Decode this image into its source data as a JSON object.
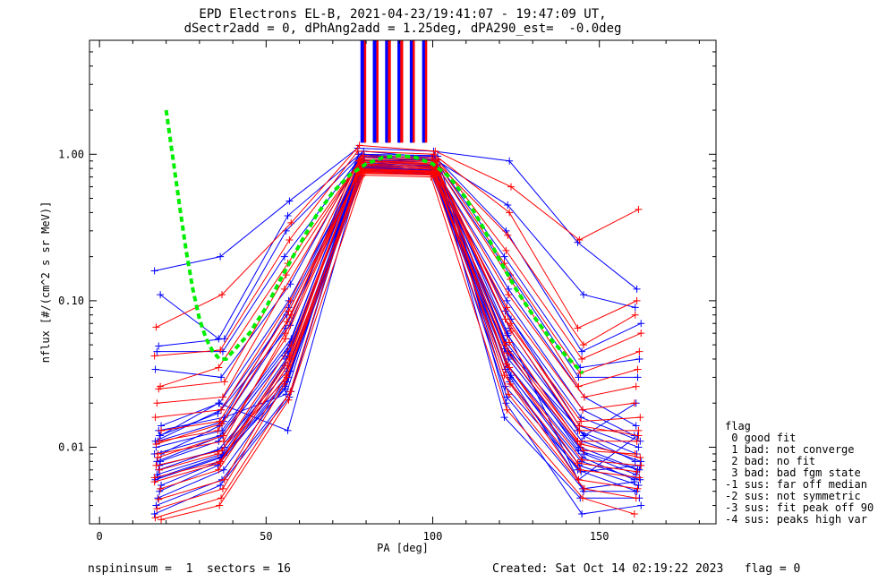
{
  "title_line1": "EPD Electrons EL-B, 2021-04-23/19:41:07 - 19:47:09 UT,",
  "title_line2": "dSectr2add = 0, dPhAng2add = 1.25deg, dPA290_est=  -0.0deg",
  "footer": {
    "left": "nspininsum =  1  sectors = 16",
    "right": "Created: Sat Oct 14 02:19:22 2023   flag = 0"
  },
  "legend": {
    "title": "flag",
    "items": [
      " 0 good fit",
      " 1 bad: not converge",
      " 2 bad: no fit",
      " 3 bad: bad fgm state",
      "-1 sus: far off median",
      "-2 sus: not symmetric",
      "-3 sus: fit peak off 90",
      "-4 sus: peaks high var"
    ]
  },
  "chart_data": {
    "type": "line",
    "xlabel": "PA [deg]",
    "ylabel": "nflux [#/(cm^2 s sr MeV)]",
    "xlim": [
      -3,
      185
    ],
    "ylim": [
      0.003,
      6.0
    ],
    "yscale": "log",
    "x_ticks": [
      0,
      50,
      100,
      150
    ],
    "x_tick_labels": [
      "0",
      "50",
      "100",
      "150"
    ],
    "y_ticks": [
      0.01,
      0.1,
      1.0
    ],
    "y_tick_labels": [
      "0.01",
      "0.10",
      "1.00"
    ],
    "pa_bins": [
      17.5,
      36.5,
      56.5,
      78.5,
      100.5,
      122.5,
      144.5,
      161.5
    ],
    "series_colors": {
      "upward": "#ff0000",
      "downward": "#0000ff",
      "fit": "#00ee00"
    },
    "series": [
      {
        "color": "blue",
        "values": [
          0.16,
          0.2,
          0.48,
          1.1,
          1.05,
          0.9,
          0.25,
          0.12
        ]
      },
      {
        "color": "blue",
        "values": [
          0.11,
          0.055,
          0.38,
          1.05,
          0.95,
          0.45,
          0.11,
          0.09
        ]
      },
      {
        "color": "blue",
        "values": [
          0.049,
          0.055,
          0.3,
          1.0,
          0.92,
          0.3,
          0.045,
          0.07
        ]
      },
      {
        "color": "blue",
        "values": [
          0.045,
          0.045,
          0.2,
          0.95,
          0.9,
          0.2,
          0.035,
          0.04
        ]
      },
      {
        "color": "blue",
        "values": [
          0.034,
          0.03,
          0.13,
          0.92,
          0.88,
          0.15,
          0.03,
          0.03
        ]
      },
      {
        "color": "blue",
        "values": [
          0.014,
          0.02,
          0.1,
          0.9,
          0.85,
          0.12,
          0.022,
          0.014
        ]
      },
      {
        "color": "blue",
        "values": [
          0.012,
          0.017,
          0.08,
          0.88,
          0.82,
          0.1,
          0.018,
          0.012
        ]
      },
      {
        "color": "blue",
        "values": [
          0.011,
          0.015,
          0.065,
          0.86,
          0.8,
          0.085,
          0.016,
          0.011
        ]
      },
      {
        "color": "blue",
        "values": [
          0.01,
          0.013,
          0.055,
          0.85,
          0.8,
          0.075,
          0.014,
          0.01
        ]
      },
      {
        "color": "blue",
        "values": [
          0.009,
          0.012,
          0.05,
          0.84,
          0.78,
          0.065,
          0.013,
          0.009
        ]
      },
      {
        "color": "blue",
        "values": [
          0.008,
          0.011,
          0.045,
          0.83,
          0.77,
          0.058,
          0.012,
          0.008
        ]
      },
      {
        "color": "blue",
        "values": [
          0.007,
          0.01,
          0.04,
          0.82,
          0.76,
          0.052,
          0.011,
          0.008
        ]
      },
      {
        "color": "blue",
        "values": [
          0.0065,
          0.009,
          0.036,
          0.81,
          0.76,
          0.047,
          0.01,
          0.007
        ]
      },
      {
        "color": "blue",
        "values": [
          0.006,
          0.0085,
          0.033,
          0.8,
          0.75,
          0.043,
          0.0095,
          0.007
        ]
      },
      {
        "color": "blue",
        "values": [
          0.0055,
          0.008,
          0.03,
          0.8,
          0.74,
          0.04,
          0.009,
          0.0065
        ]
      },
      {
        "color": "blue",
        "values": [
          0.005,
          0.0075,
          0.028,
          0.79,
          0.74,
          0.037,
          0.0085,
          0.006
        ]
      },
      {
        "color": "blue",
        "values": [
          0.0045,
          0.007,
          0.026,
          0.78,
          0.73,
          0.034,
          0.008,
          0.006
        ]
      },
      {
        "color": "blue",
        "values": [
          0.004,
          0.006,
          0.024,
          0.78,
          0.72,
          0.031,
          0.0075,
          0.0055
        ]
      },
      {
        "color": "blue",
        "values": [
          0.0035,
          0.0055,
          0.022,
          0.77,
          0.72,
          0.028,
          0.007,
          0.005
        ]
      },
      {
        "color": "blue",
        "values": [
          0.012,
          0.02,
          0.013,
          0.9,
          0.92,
          0.06,
          0.005,
          0.005
        ]
      },
      {
        "color": "blue",
        "values": [
          0.013,
          0.016,
          0.023,
          0.95,
          0.97,
          0.02,
          0.0035,
          0.004
        ]
      },
      {
        "color": "blue",
        "values": [
          0.008,
          0.012,
          0.042,
          0.9,
          0.85,
          0.016,
          0.0045,
          0.0045
        ]
      },
      {
        "color": "blue",
        "values": [
          0.011,
          0.018,
          0.068,
          1.0,
          0.98,
          0.03,
          0.006,
          0.012
        ]
      },
      {
        "color": "blue",
        "values": [
          0.009,
          0.014,
          0.09,
          0.97,
          0.95,
          0.045,
          0.012,
          0.02
        ]
      },
      {
        "color": "blue",
        "values": [
          0.0075,
          0.0095,
          0.033,
          0.86,
          0.84,
          0.022,
          0.0052,
          0.0058
        ]
      },
      {
        "color": "blue",
        "values": [
          0.0062,
          0.0088,
          0.025,
          0.83,
          0.81,
          0.026,
          0.0068,
          0.0075
        ]
      },
      {
        "color": "red",
        "values": [
          0.066,
          0.11,
          0.34,
          1.15,
          1.05,
          0.6,
          0.26,
          0.42
        ]
      },
      {
        "color": "red",
        "values": [
          0.042,
          0.046,
          0.26,
          1.05,
          1.0,
          0.4,
          0.065,
          0.1
        ]
      },
      {
        "color": "red",
        "values": [
          0.026,
          0.035,
          0.18,
          0.98,
          0.95,
          0.28,
          0.05,
          0.08
        ]
      },
      {
        "color": "red",
        "values": [
          0.025,
          0.028,
          0.15,
          0.95,
          0.92,
          0.22,
          0.04,
          0.06
        ]
      },
      {
        "color": "red",
        "values": [
          0.02,
          0.022,
          0.12,
          0.92,
          0.9,
          0.18,
          0.032,
          0.045
        ]
      },
      {
        "color": "red",
        "values": [
          0.016,
          0.018,
          0.1,
          0.9,
          0.88,
          0.14,
          0.026,
          0.034
        ]
      },
      {
        "color": "red",
        "values": [
          0.013,
          0.015,
          0.085,
          0.88,
          0.85,
          0.11,
          0.022,
          0.026
        ]
      },
      {
        "color": "red",
        "values": [
          0.011,
          0.013,
          0.072,
          0.86,
          0.83,
          0.09,
          0.018,
          0.02
        ]
      },
      {
        "color": "red",
        "values": [
          0.009,
          0.011,
          0.06,
          0.84,
          0.81,
          0.075,
          0.015,
          0.016
        ]
      },
      {
        "color": "red",
        "values": [
          0.0075,
          0.0095,
          0.05,
          0.82,
          0.79,
          0.062,
          0.013,
          0.013
        ]
      },
      {
        "color": "red",
        "values": [
          0.0062,
          0.008,
          0.042,
          0.8,
          0.77,
          0.052,
          0.011,
          0.011
        ]
      },
      {
        "color": "red",
        "values": [
          0.0052,
          0.007,
          0.036,
          0.78,
          0.76,
          0.044,
          0.0095,
          0.009
        ]
      },
      {
        "color": "red",
        "values": [
          0.0044,
          0.006,
          0.031,
          0.77,
          0.75,
          0.037,
          0.0082,
          0.0075
        ]
      },
      {
        "color": "red",
        "values": [
          0.0038,
          0.0052,
          0.027,
          0.76,
          0.74,
          0.031,
          0.007,
          0.0062
        ]
      },
      {
        "color": "red",
        "values": [
          0.0033,
          0.0045,
          0.024,
          0.75,
          0.73,
          0.027,
          0.006,
          0.0052
        ]
      },
      {
        "color": "red",
        "values": [
          0.0032,
          0.004,
          0.021,
          0.74,
          0.72,
          0.023,
          0.0052,
          0.0045
        ]
      },
      {
        "color": "red",
        "values": [
          0.007,
          0.009,
          0.03,
          0.72,
          0.7,
          0.018,
          0.0045,
          0.0035
        ]
      },
      {
        "color": "red",
        "values": [
          0.0085,
          0.012,
          0.055,
          0.85,
          0.8,
          0.05,
          0.0105,
          0.0085
        ]
      },
      {
        "color": "red",
        "values": [
          0.0105,
          0.0145,
          0.08,
          0.9,
          0.86,
          0.07,
          0.014,
          0.012
        ]
      },
      {
        "color": "red",
        "values": [
          0.0058,
          0.0078,
          0.04,
          0.79,
          0.76,
          0.035,
          0.0078,
          0.0068
        ]
      }
    ],
    "fit": {
      "color": "#00ee00",
      "x": [
        20,
        22,
        24,
        26,
        28,
        30,
        32,
        34,
        36,
        38,
        40,
        45,
        50,
        55,
        60,
        65,
        70,
        75,
        80,
        85,
        90,
        95,
        100,
        105,
        110,
        115,
        120,
        125,
        130,
        135,
        140,
        145
      ],
      "y": [
        2.0,
        0.95,
        0.45,
        0.22,
        0.12,
        0.075,
        0.055,
        0.045,
        0.04,
        0.04,
        0.045,
        0.06,
        0.09,
        0.15,
        0.24,
        0.38,
        0.55,
        0.72,
        0.86,
        0.95,
        0.98,
        0.95,
        0.86,
        0.7,
        0.5,
        0.32,
        0.19,
        0.12,
        0.08,
        0.056,
        0.042,
        0.032
      ]
    }
  }
}
